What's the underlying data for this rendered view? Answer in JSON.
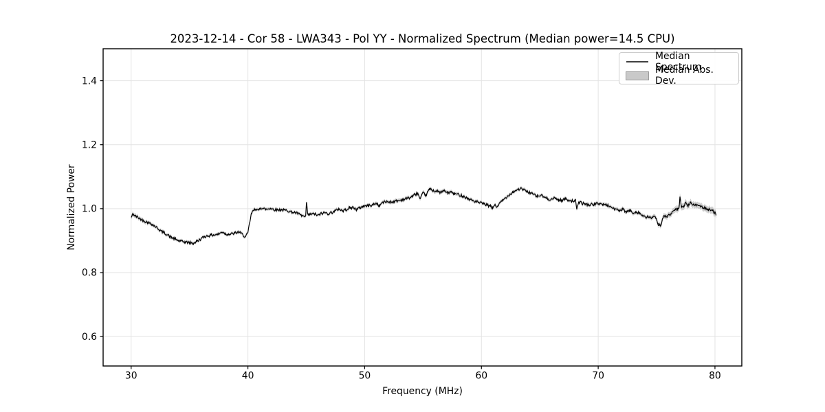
{
  "figure": {
    "title": "2023-12-14 - Cor 58 - LWA343 - Pol YY - Normalized Spectrum (Median power=14.5 CPU)",
    "xlabel": "Frequency (MHz)",
    "ylabel": "Normalized Power"
  },
  "legend": {
    "items": [
      {
        "label": "Median Spectrum",
        "type": "line",
        "color": "#000000"
      },
      {
        "label": "Median Abs. Dev.",
        "type": "patch",
        "color": "#c9c9c9",
        "edge": "#9a9a9a"
      }
    ]
  },
  "colors": {
    "grid": "#e3e3e3",
    "spine": "#000000",
    "text": "#000000",
    "line": "#000000",
    "band": "#bdbdbd"
  },
  "chart_data": {
    "type": "line",
    "title": "2023-12-14 - Cor 58 - LWA343 - Pol YY - Normalized Spectrum (Median power=14.5 CPU)",
    "xlabel": "Frequency (MHz)",
    "ylabel": "Normalized Power",
    "xlim": [
      27.6,
      82.3
    ],
    "ylim": [
      0.508,
      1.5
    ],
    "xticks": [
      30,
      40,
      50,
      60,
      70,
      80
    ],
    "yticks": [
      0.6,
      0.8,
      1.0,
      1.2,
      1.4
    ],
    "grid": true,
    "legend_position": "upper right",
    "noise": {
      "seed": 42,
      "amplitude": 0.0045,
      "points_per_mhz": 18
    },
    "series": [
      {
        "name": "Median Spectrum",
        "keypoints": [
          [
            30.0,
            0.972
          ],
          [
            30.15,
            0.983
          ],
          [
            30.4,
            0.976
          ],
          [
            30.7,
            0.97
          ],
          [
            31.0,
            0.964
          ],
          [
            31.4,
            0.957
          ],
          [
            31.8,
            0.951
          ],
          [
            32.2,
            0.941
          ],
          [
            32.6,
            0.929
          ],
          [
            33.0,
            0.921
          ],
          [
            33.4,
            0.911
          ],
          [
            33.8,
            0.904
          ],
          [
            34.2,
            0.898
          ],
          [
            34.6,
            0.8955
          ],
          [
            35.0,
            0.894
          ],
          [
            35.3,
            0.891
          ],
          [
            35.6,
            0.897
          ],
          [
            36.0,
            0.906
          ],
          [
            36.3,
            0.913
          ],
          [
            36.7,
            0.916
          ],
          [
            37.1,
            0.918
          ],
          [
            37.5,
            0.92
          ],
          [
            37.8,
            0.9275
          ],
          [
            38.1,
            0.921
          ],
          [
            38.5,
            0.92
          ],
          [
            38.9,
            0.9235
          ],
          [
            39.2,
            0.927
          ],
          [
            39.5,
            0.92
          ],
          [
            39.8,
            0.9115
          ],
          [
            40.0,
            0.924
          ],
          [
            40.15,
            0.956
          ],
          [
            40.3,
            0.984
          ],
          [
            40.5,
            0.996
          ],
          [
            40.7,
            0.9995
          ],
          [
            40.9,
            0.9935
          ],
          [
            41.1,
            1.004
          ],
          [
            41.35,
            0.9995
          ],
          [
            41.6,
            0.998
          ],
          [
            41.9,
            1.0015
          ],
          [
            42.2,
            0.998
          ],
          [
            42.5,
            0.996
          ],
          [
            42.8,
            0.997
          ],
          [
            43.1,
            0.995
          ],
          [
            43.4,
            0.994
          ],
          [
            43.7,
            0.99
          ],
          [
            44.0,
            0.988
          ],
          [
            44.3,
            0.984
          ],
          [
            44.6,
            0.978
          ],
          [
            44.95,
            0.9735
          ],
          [
            45.02,
            1.022
          ],
          [
            45.12,
            0.981
          ],
          [
            45.4,
            0.982
          ],
          [
            45.7,
            0.9835
          ],
          [
            46.0,
            0.978
          ],
          [
            46.3,
            0.985
          ],
          [
            46.6,
            0.987
          ],
          [
            46.9,
            0.9845
          ],
          [
            47.2,
            0.988
          ],
          [
            47.5,
            0.993
          ],
          [
            47.8,
            1.0
          ],
          [
            48.1,
            0.9925
          ],
          [
            48.4,
            0.997
          ],
          [
            48.7,
            1.002
          ],
          [
            49.0,
            1.004
          ],
          [
            49.3,
            0.997
          ],
          [
            49.6,
            1.003
          ],
          [
            49.9,
            1.008
          ],
          [
            50.3,
            1.009
          ],
          [
            50.7,
            1.012
          ],
          [
            51.0,
            1.017
          ],
          [
            51.25,
            1.009
          ],
          [
            51.5,
            1.019
          ],
          [
            51.9,
            1.022
          ],
          [
            52.3,
            1.021
          ],
          [
            52.7,
            1.024
          ],
          [
            53.1,
            1.027
          ],
          [
            53.5,
            1.031
          ],
          [
            53.9,
            1.035
          ],
          [
            54.3,
            1.044
          ],
          [
            54.55,
            1.048
          ],
          [
            54.75,
            1.028
          ],
          [
            55.0,
            1.049
          ],
          [
            55.25,
            1.042
          ],
          [
            55.55,
            1.061
          ],
          [
            55.85,
            1.057
          ],
          [
            56.2,
            1.054
          ],
          [
            56.5,
            1.051
          ],
          [
            56.8,
            1.0555
          ],
          [
            57.1,
            1.05
          ],
          [
            57.4,
            1.052
          ],
          [
            57.7,
            1.046
          ],
          [
            58.0,
            1.0445
          ],
          [
            58.4,
            1.04
          ],
          [
            58.8,
            1.032
          ],
          [
            59.2,
            1.026
          ],
          [
            59.6,
            1.021
          ],
          [
            60.0,
            1.017
          ],
          [
            60.4,
            1.012
          ],
          [
            60.8,
            1.007
          ],
          [
            60.95,
            1.0
          ],
          [
            61.1,
            1.012
          ],
          [
            61.3,
            1.005
          ],
          [
            61.55,
            1.016
          ],
          [
            61.8,
            1.025
          ],
          [
            62.1,
            1.035
          ],
          [
            62.4,
            1.044
          ],
          [
            62.7,
            1.052
          ],
          [
            63.0,
            1.058
          ],
          [
            63.3,
            1.062
          ],
          [
            63.6,
            1.0595
          ],
          [
            63.9,
            1.0545
          ],
          [
            64.2,
            1.049
          ],
          [
            64.5,
            1.0435
          ],
          [
            64.8,
            1.038
          ],
          [
            65.1,
            1.042
          ],
          [
            65.4,
            1.035
          ],
          [
            65.7,
            1.031
          ],
          [
            66.0,
            1.029
          ],
          [
            66.3,
            1.033
          ],
          [
            66.6,
            1.0275
          ],
          [
            66.9,
            1.026
          ],
          [
            67.2,
            1.031
          ],
          [
            67.5,
            1.027
          ],
          [
            67.8,
            1.024
          ],
          [
            68.05,
            1.026
          ],
          [
            68.15,
            0.998
          ],
          [
            68.35,
            1.021
          ],
          [
            68.6,
            1.017
          ],
          [
            68.9,
            1.014
          ],
          [
            69.2,
            1.012
          ],
          [
            69.5,
            1.013
          ],
          [
            69.8,
            1.0145
          ],
          [
            70.1,
            1.017
          ],
          [
            70.4,
            1.012
          ],
          [
            70.7,
            1.0125
          ],
          [
            71.1,
            1.005
          ],
          [
            71.5,
            0.998
          ],
          [
            71.8,
            0.993
          ],
          [
            72.1,
            0.998
          ],
          [
            72.4,
            0.989
          ],
          [
            72.7,
            0.994
          ],
          [
            73.0,
            0.986
          ],
          [
            73.2,
            0.991
          ],
          [
            73.5,
            0.987
          ],
          [
            73.8,
            0.978
          ],
          [
            74.1,
            0.971
          ],
          [
            74.35,
            0.975
          ],
          [
            74.6,
            0.971
          ],
          [
            74.9,
            0.9735
          ],
          [
            75.15,
            0.952
          ],
          [
            75.35,
            0.948
          ],
          [
            75.6,
            0.975
          ],
          [
            75.9,
            0.976
          ],
          [
            76.2,
            0.982
          ],
          [
            76.5,
            0.994
          ],
          [
            76.8,
            0.998
          ],
          [
            76.92,
            0.999
          ],
          [
            77.0,
            1.041
          ],
          [
            77.12,
            1.003
          ],
          [
            77.3,
            1.008
          ],
          [
            77.5,
            1.016
          ],
          [
            77.7,
            1.01
          ],
          [
            77.95,
            1.019
          ],
          [
            78.2,
            1.01
          ],
          [
            78.45,
            1.012
          ],
          [
            78.7,
            1.009
          ],
          [
            78.9,
            1.005
          ],
          [
            79.2,
            1.001
          ],
          [
            79.5,
            0.998
          ],
          [
            79.8,
            0.993
          ],
          [
            80.0,
            0.987
          ],
          [
            80.1,
            0.979
          ]
        ]
      },
      {
        "name": "Median Abs. Dev.",
        "band_halfwidth_keypoints": [
          [
            30.0,
            0.007
          ],
          [
            31.0,
            0.006
          ],
          [
            33.0,
            0.005
          ],
          [
            36.0,
            0.0045
          ],
          [
            40.0,
            0.005
          ],
          [
            44.0,
            0.0045
          ],
          [
            48.0,
            0.005
          ],
          [
            52.0,
            0.0055
          ],
          [
            56.0,
            0.006
          ],
          [
            60.0,
            0.005
          ],
          [
            64.0,
            0.005
          ],
          [
            68.0,
            0.005
          ],
          [
            71.0,
            0.0055
          ],
          [
            74.0,
            0.006
          ],
          [
            75.5,
            0.008
          ],
          [
            76.5,
            0.009
          ],
          [
            77.0,
            0.011
          ],
          [
            77.5,
            0.01
          ],
          [
            78.0,
            0.0095
          ],
          [
            79.0,
            0.01
          ],
          [
            80.1,
            0.011
          ]
        ]
      }
    ]
  }
}
